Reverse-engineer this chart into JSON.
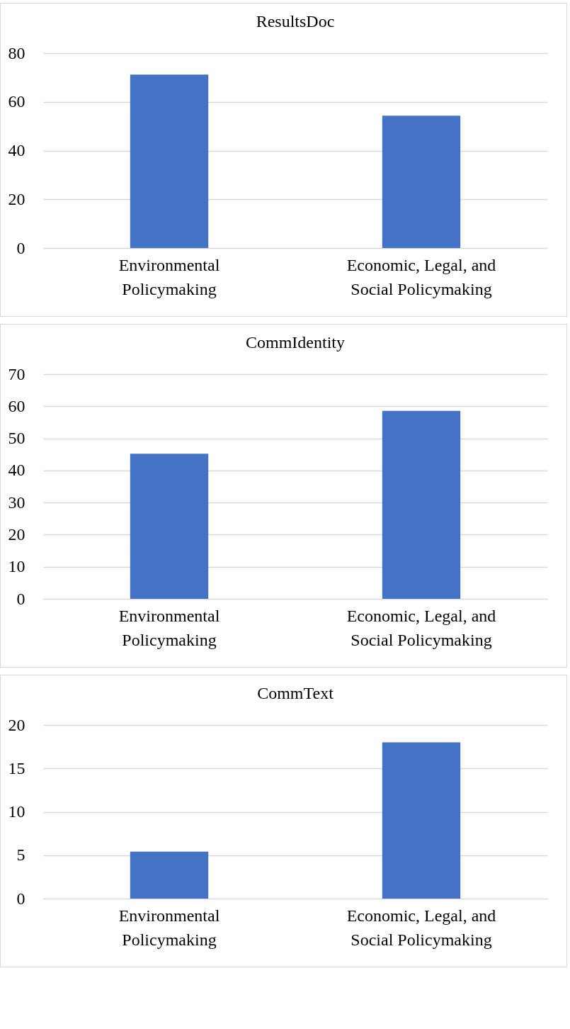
{
  "chart_data": [
    {
      "type": "bar",
      "title": "ResultsDoc",
      "categories": [
        "Environmental Policymaking",
        "Economic, Legal, and Social Policymaking"
      ],
      "values": [
        71.2,
        54.3
      ],
      "color": "#4472c4",
      "ylim": [
        0,
        80
      ],
      "yticks": [
        0,
        20,
        40,
        60,
        80
      ],
      "grid": "y"
    },
    {
      "type": "bar",
      "title": "CommIdentity",
      "categories": [
        "Environmental Policymaking",
        "Economic, Legal, and Social Policymaking"
      ],
      "values": [
        45.2,
        58.6
      ],
      "color": "#4472c4",
      "ylim": [
        0,
        70
      ],
      "yticks": [
        0,
        10,
        20,
        30,
        40,
        50,
        60,
        70
      ],
      "grid": "y"
    },
    {
      "type": "bar",
      "title": "CommText",
      "categories": [
        "Environmental Policymaking",
        "Economic, Legal, and Social Policymaking"
      ],
      "values": [
        5.4,
        18.0
      ],
      "color": "#4472c4",
      "ylim": [
        0,
        20
      ],
      "yticks": [
        0,
        5,
        10,
        15,
        20
      ],
      "grid": "y"
    }
  ]
}
